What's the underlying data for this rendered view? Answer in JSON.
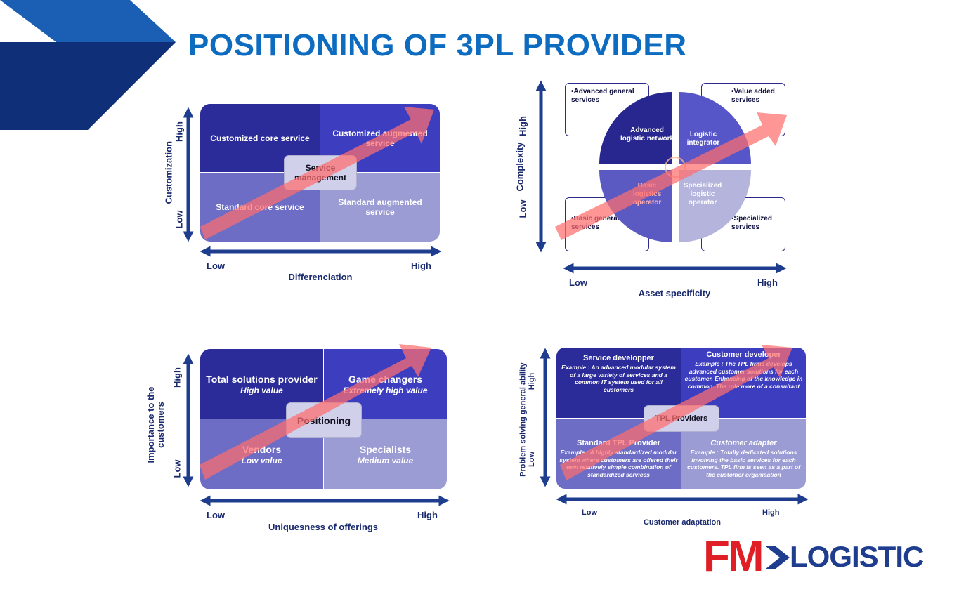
{
  "title": "POSITIONING OF 3PL PROVIDER",
  "colors": {
    "title": "#0d6cc0",
    "arrow": "#ff7070",
    "axis": "#1e3d8f"
  },
  "d1": {
    "tl": "Customized core service",
    "tr": "Customized augmented service",
    "bl": "Standard core service",
    "br": "Standard augmented service",
    "center": "Service management",
    "ylabel": "Customization",
    "yhigh": "High",
    "ylow": "Low",
    "xlabel": "Differenciation",
    "xlow": "Low",
    "xhigh": "High"
  },
  "d2": {
    "tl": "Advanced logistic network",
    "tr": "Logistic integrator",
    "bl": "Basic logistics operator",
    "br": "Specialized logistic operator",
    "note_tl": "•Advanced general services",
    "note_tr": "•Value added services",
    "note_bl": "•Basic general services",
    "note_br": "•Specialized services",
    "ylabel": "Complexity",
    "yhigh": "High",
    "ylow": "Low",
    "xlabel": "Asset specificity",
    "xlow": "Low",
    "xhigh": "High"
  },
  "d3": {
    "tl_title": "Total solutions provider",
    "tl_sub": "High value",
    "tr_title": "Game changers",
    "tr_sub": "Extremely high value",
    "bl_title": "Vendors",
    "bl_sub": "Low value",
    "br_title": "Specialists",
    "br_sub": "Medium value",
    "center": "Positioning",
    "ylabel": "Importance to the customers",
    "yhigh": "High",
    "ylow": "Low",
    "xlabel": "Uniquesness of offerings",
    "xlow": "Low",
    "xhigh": "High"
  },
  "d4": {
    "tl_title": "Service developper",
    "tl_desc": "Example : An advanced modular system of a large variety of services and a common IT system used for all customers",
    "tr_title": "Customer developer",
    "tr_desc": "Example : The TPL firms develops advanced customer solutions for each customer. Enhancing of the knowledge in common. The role more of a consultant",
    "bl_title": "Standard TPL Provider",
    "bl_desc": "Example : A highly standardized modular system where customers are offered their own relatively simple combination of standardized services",
    "br_title": "Customer adapter",
    "br_desc": "Example : Totally dedicated solutions involving the basic services for each customers. TPL firm is seen as a part of the customer organisation",
    "center": "TPL Providers",
    "ylabel": "Problem solving general ability",
    "yhigh": "High",
    "ylow": "Low",
    "xlabel": "Customer adaptation",
    "xlow": "Low",
    "xhigh": "High"
  },
  "logo": {
    "fm": "FM",
    "text": "LOGISTIC"
  }
}
